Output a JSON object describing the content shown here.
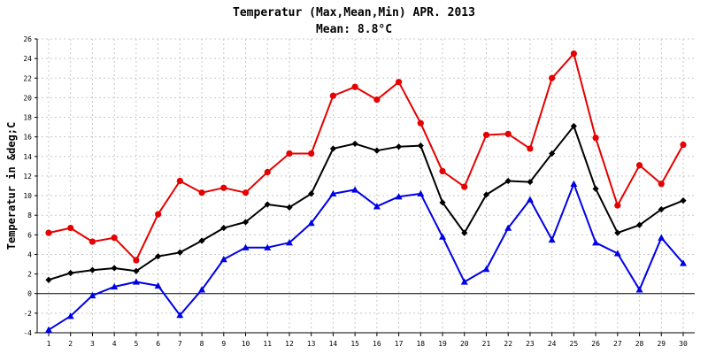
{
  "chart_data": {
    "type": "line",
    "title": "Temperatur (Max,Mean,Min) APR. 2013",
    "subtitle": "Mean: 8.8°C",
    "xlabel": "",
    "ylabel": "Temperatur in &deg;C",
    "ylim": [
      -4,
      26
    ],
    "yticks": [
      -4,
      -2,
      0,
      2,
      4,
      6,
      8,
      10,
      12,
      14,
      16,
      18,
      20,
      22,
      24,
      26
    ],
    "grid": true,
    "x": [
      1,
      2,
      3,
      4,
      5,
      6,
      7,
      8,
      9,
      10,
      11,
      12,
      13,
      14,
      15,
      16,
      17,
      18,
      19,
      20,
      21,
      22,
      23,
      24,
      25,
      26,
      27,
      28,
      29,
      30
    ],
    "series": [
      {
        "color": "#e60000",
        "marker": "circle",
        "values": [
          6.2,
          6.7,
          5.3,
          5.7,
          3.4,
          8.1,
          11.5,
          10.3,
          10.8,
          10.3,
          12.4,
          14.3,
          14.3,
          20.2,
          21.1,
          19.8,
          21.6,
          17.4,
          12.5,
          10.9,
          16.2,
          16.3,
          14.8,
          22.0,
          24.5,
          15.9,
          9.0,
          13.1,
          11.2,
          15.2
        ]
      },
      {
        "color": "#000000",
        "marker": "diamond",
        "values": [
          1.4,
          2.1,
          2.4,
          2.6,
          2.3,
          3.8,
          4.2,
          5.4,
          6.7,
          7.3,
          9.1,
          8.8,
          10.2,
          14.8,
          15.3,
          14.6,
          15.0,
          15.1,
          9.3,
          6.2,
          10.1,
          11.5,
          11.4,
          14.3,
          17.1,
          10.7,
          6.2,
          7.0,
          8.6,
          9.5
        ]
      },
      {
        "color": "#0000e6",
        "marker": "triangle",
        "values": [
          -3.7,
          -2.3,
          -0.2,
          0.7,
          1.2,
          0.8,
          -2.2,
          0.4,
          3.5,
          4.7,
          4.7,
          5.2,
          7.2,
          10.2,
          10.6,
          8.9,
          9.9,
          10.2,
          5.8,
          1.2,
          2.5,
          6.7,
          9.6,
          5.5,
          11.2,
          5.2,
          4.1,
          0.4,
          5.7,
          3.1
        ]
      }
    ]
  }
}
